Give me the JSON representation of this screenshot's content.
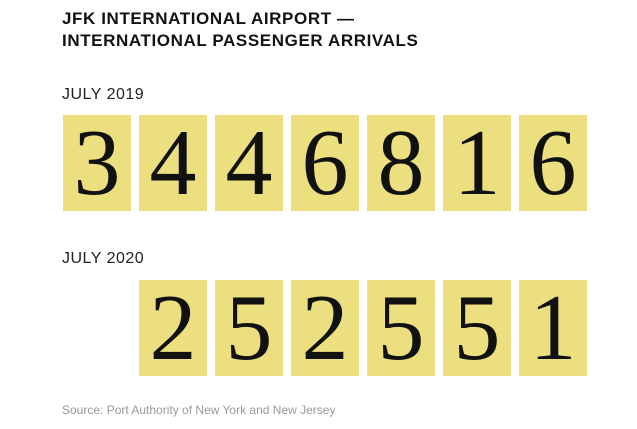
{
  "header": {
    "title": [
      "JFK INTERNATIONAL AIRPORT —",
      "INTERNATIONAL PASSENGER ARRIVALS"
    ]
  },
  "sections": [
    {
      "label": "JULY 2019",
      "digits": [
        "3",
        "4",
        "4",
        "6",
        "8",
        "1",
        "6"
      ]
    },
    {
      "label": "JULY 2020",
      "digits": [
        "2",
        "5",
        "2",
        "5",
        "5",
        "1"
      ]
    }
  ],
  "source": "Source: Port Authority of New York and New Jersey"
}
